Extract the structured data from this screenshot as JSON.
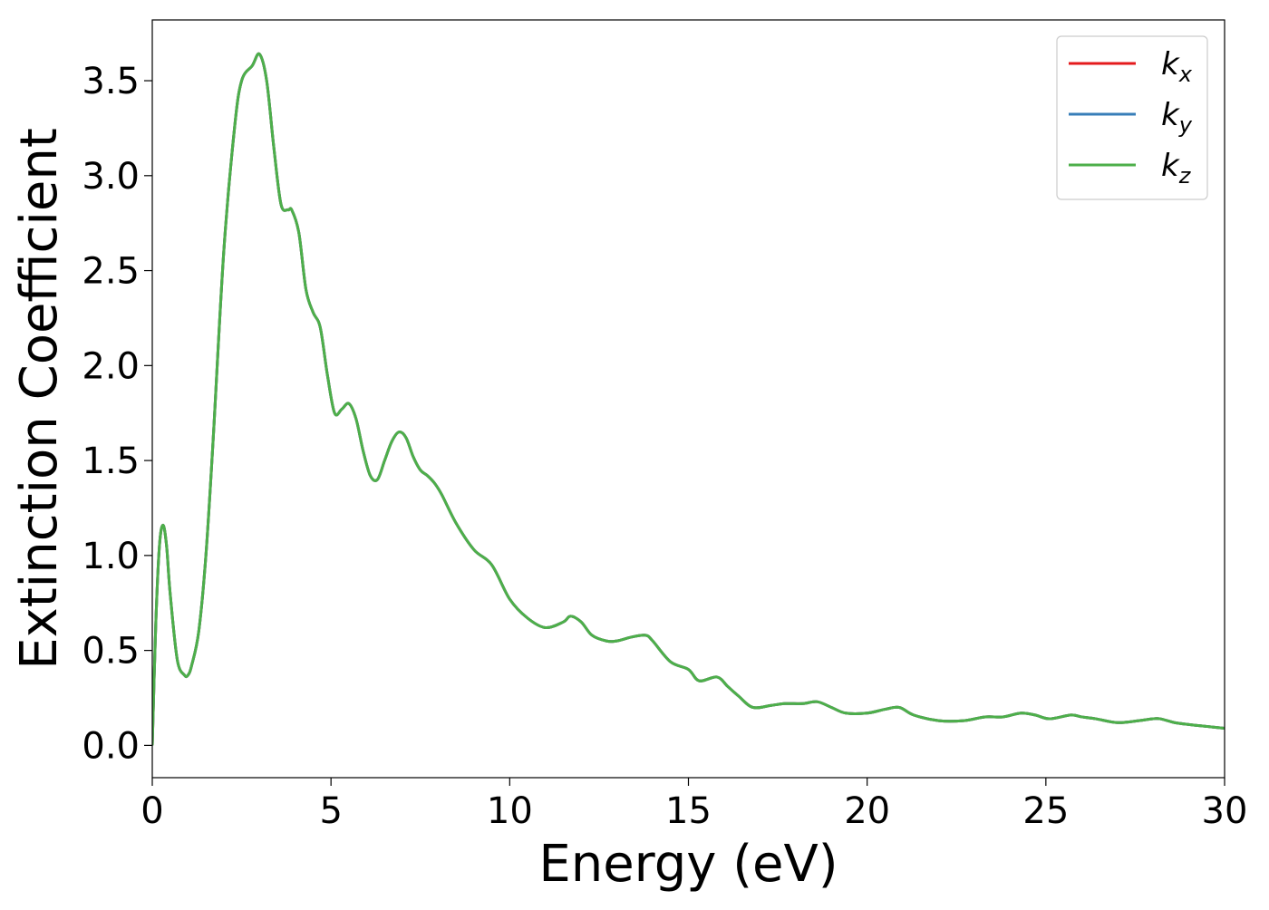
{
  "chart_data": {
    "type": "line",
    "title": "",
    "xlabel": "Energy (eV)",
    "ylabel": "Extinction Coefficient",
    "xlim": [
      0,
      30
    ],
    "ylim": [
      -0.17,
      3.82
    ],
    "xticks": [
      0,
      5,
      10,
      15,
      20,
      25,
      30
    ],
    "yticks": [
      0.0,
      0.5,
      1.0,
      1.5,
      2.0,
      2.5,
      3.0,
      3.5
    ],
    "xtick_labels": [
      "0",
      "5",
      "10",
      "15",
      "20",
      "25",
      "30"
    ],
    "ytick_labels": [
      "0.0",
      "0.5",
      "1.0",
      "1.5",
      "2.0",
      "2.5",
      "3.0",
      "3.5"
    ],
    "grid": false,
    "legend": {
      "placement": "top-right",
      "entries": [
        {
          "base": "k",
          "sub": "x",
          "color": "#e41a1c"
        },
        {
          "base": "k",
          "sub": "y",
          "color": "#377eb8"
        },
        {
          "base": "k",
          "sub": "z",
          "color": "#4daf4a"
        }
      ]
    },
    "x": [
      0.0,
      0.1,
      0.2,
      0.3,
      0.4,
      0.5,
      0.7,
      0.9,
      1.0,
      1.1,
      1.3,
      1.5,
      1.7,
      2.0,
      2.3,
      2.5,
      2.8,
      3.0,
      3.2,
      3.4,
      3.6,
      3.8,
      3.9,
      4.1,
      4.3,
      4.5,
      4.7,
      4.9,
      5.1,
      5.3,
      5.5,
      5.7,
      5.9,
      6.1,
      6.3,
      6.5,
      6.7,
      6.9,
      7.1,
      7.3,
      7.5,
      7.7,
      7.9,
      8.1,
      8.5,
      9.0,
      9.5,
      10.0,
      10.5,
      11.0,
      11.5,
      11.7,
      12.0,
      12.3,
      12.7,
      13.0,
      13.4,
      13.8,
      14.0,
      14.5,
      15.0,
      15.3,
      15.8,
      16.1,
      16.4,
      16.8,
      17.3,
      17.7,
      18.2,
      18.6,
      19.0,
      19.4,
      20.0,
      20.5,
      20.9,
      21.3,
      22.0,
      22.7,
      23.3,
      23.8,
      24.3,
      24.7,
      25.1,
      25.7,
      26.0,
      26.4,
      27.0,
      27.6,
      28.0,
      28.2,
      28.6,
      29.0,
      29.5,
      30.0
    ],
    "series": [
      {
        "name": "kx",
        "color": "#e41a1c",
        "values": [
          0.0,
          0.65,
          1.05,
          1.16,
          1.05,
          0.8,
          0.45,
          0.37,
          0.37,
          0.42,
          0.6,
          1.0,
          1.6,
          2.6,
          3.25,
          3.5,
          3.58,
          3.64,
          3.5,
          3.15,
          2.85,
          2.82,
          2.82,
          2.7,
          2.4,
          2.28,
          2.2,
          1.95,
          1.75,
          1.77,
          1.8,
          1.72,
          1.55,
          1.42,
          1.4,
          1.5,
          1.6,
          1.65,
          1.62,
          1.52,
          1.45,
          1.42,
          1.38,
          1.32,
          1.17,
          1.03,
          0.95,
          0.77,
          0.67,
          0.62,
          0.65,
          0.68,
          0.65,
          0.58,
          0.55,
          0.55,
          0.57,
          0.58,
          0.55,
          0.44,
          0.4,
          0.34,
          0.36,
          0.31,
          0.26,
          0.2,
          0.21,
          0.22,
          0.22,
          0.23,
          0.2,
          0.17,
          0.17,
          0.19,
          0.2,
          0.16,
          0.13,
          0.13,
          0.15,
          0.15,
          0.17,
          0.16,
          0.14,
          0.16,
          0.15,
          0.14,
          0.12,
          0.13,
          0.14,
          0.14,
          0.12,
          0.11,
          0.1,
          0.09
        ]
      },
      {
        "name": "ky",
        "color": "#377eb8",
        "values": [
          0.0,
          0.65,
          1.05,
          1.16,
          1.05,
          0.8,
          0.45,
          0.37,
          0.37,
          0.42,
          0.6,
          1.0,
          1.6,
          2.6,
          3.25,
          3.5,
          3.58,
          3.64,
          3.5,
          3.15,
          2.85,
          2.82,
          2.82,
          2.7,
          2.4,
          2.28,
          2.2,
          1.95,
          1.75,
          1.77,
          1.8,
          1.72,
          1.55,
          1.42,
          1.4,
          1.5,
          1.6,
          1.65,
          1.62,
          1.52,
          1.45,
          1.42,
          1.38,
          1.32,
          1.17,
          1.03,
          0.95,
          0.77,
          0.67,
          0.62,
          0.65,
          0.68,
          0.65,
          0.58,
          0.55,
          0.55,
          0.57,
          0.58,
          0.55,
          0.44,
          0.4,
          0.34,
          0.36,
          0.31,
          0.26,
          0.2,
          0.21,
          0.22,
          0.22,
          0.23,
          0.2,
          0.17,
          0.17,
          0.19,
          0.2,
          0.16,
          0.13,
          0.13,
          0.15,
          0.15,
          0.17,
          0.16,
          0.14,
          0.16,
          0.15,
          0.14,
          0.12,
          0.13,
          0.14,
          0.14,
          0.12,
          0.11,
          0.1,
          0.09
        ]
      },
      {
        "name": "kz",
        "color": "#4daf4a",
        "values": [
          0.0,
          0.65,
          1.05,
          1.16,
          1.05,
          0.8,
          0.45,
          0.37,
          0.37,
          0.42,
          0.6,
          1.0,
          1.6,
          2.6,
          3.25,
          3.5,
          3.58,
          3.64,
          3.5,
          3.15,
          2.85,
          2.82,
          2.82,
          2.7,
          2.4,
          2.28,
          2.2,
          1.95,
          1.75,
          1.77,
          1.8,
          1.72,
          1.55,
          1.42,
          1.4,
          1.5,
          1.6,
          1.65,
          1.62,
          1.52,
          1.45,
          1.42,
          1.38,
          1.32,
          1.17,
          1.03,
          0.95,
          0.77,
          0.67,
          0.62,
          0.65,
          0.68,
          0.65,
          0.58,
          0.55,
          0.55,
          0.57,
          0.58,
          0.55,
          0.44,
          0.4,
          0.34,
          0.36,
          0.31,
          0.26,
          0.2,
          0.21,
          0.22,
          0.22,
          0.23,
          0.2,
          0.17,
          0.17,
          0.19,
          0.2,
          0.16,
          0.13,
          0.13,
          0.15,
          0.15,
          0.17,
          0.16,
          0.14,
          0.16,
          0.15,
          0.14,
          0.12,
          0.13,
          0.14,
          0.14,
          0.12,
          0.11,
          0.1,
          0.09
        ]
      }
    ]
  }
}
